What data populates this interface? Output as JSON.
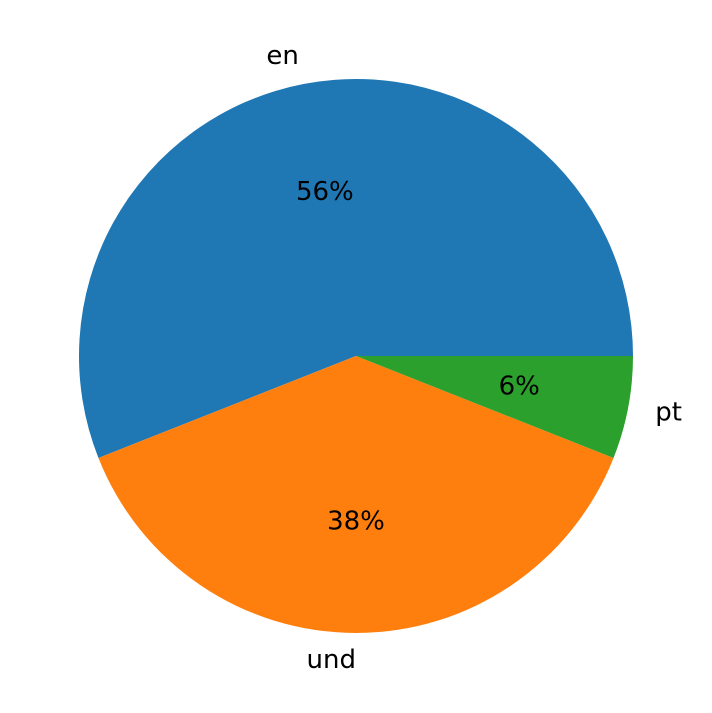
{
  "chart_data": {
    "type": "pie",
    "categories": [
      "en",
      "und",
      "pt"
    ],
    "values": [
      56,
      38,
      6
    ],
    "value_labels": [
      "56%",
      "38%",
      "6%"
    ],
    "colors": [
      "#1f77b4",
      "#ff7f0e",
      "#2ca02c"
    ]
  }
}
